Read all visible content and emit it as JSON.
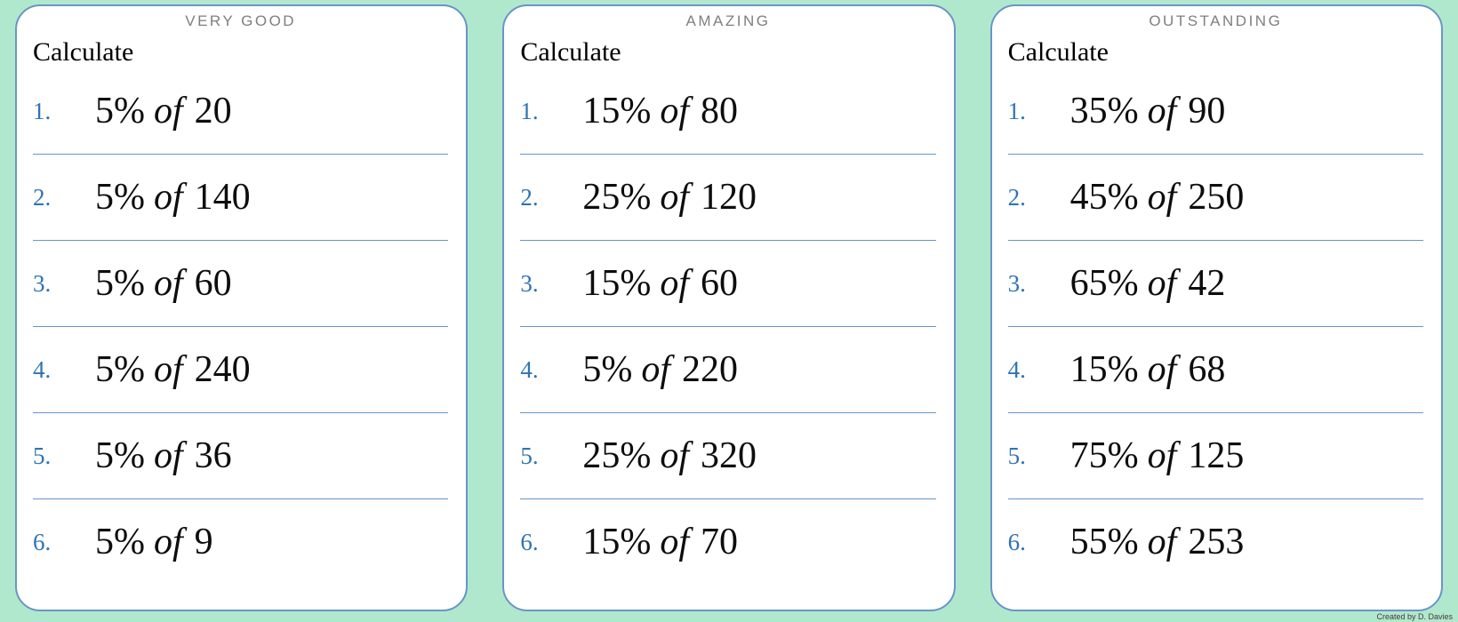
{
  "colors": {
    "background": "#b0e8cd",
    "card_border": "#6a94c8",
    "divider": "#6496cd",
    "number_blue": "#2e74b5",
    "title_gray": "#7f7f7f"
  },
  "credit": "Created by D. Davies",
  "cards": [
    {
      "title": "VERY GOOD",
      "heading": "Calculate",
      "items": [
        {
          "index": "1.",
          "percent": "5%",
          "of": "of",
          "number": "20"
        },
        {
          "index": "2.",
          "percent": "5%",
          "of": "of",
          "number": "140"
        },
        {
          "index": "3.",
          "percent": "5%",
          "of": "of",
          "number": "60"
        },
        {
          "index": "4.",
          "percent": "5%",
          "of": "of",
          "number": "240"
        },
        {
          "index": "5.",
          "percent": "5%",
          "of": "of",
          "number": "36"
        },
        {
          "index": "6.",
          "percent": "5%",
          "of": "of",
          "number": "9"
        }
      ]
    },
    {
      "title": "AMAZING",
      "heading": "Calculate",
      "items": [
        {
          "index": "1.",
          "percent": "15%",
          "of": "of",
          "number": "80"
        },
        {
          "index": "2.",
          "percent": "25%",
          "of": "of",
          "number": "120"
        },
        {
          "index": "3.",
          "percent": "15%",
          "of": "of",
          "number": "60"
        },
        {
          "index": "4.",
          "percent": "5%",
          "of": "of",
          "number": "220"
        },
        {
          "index": "5.",
          "percent": "25%",
          "of": "of",
          "number": "320"
        },
        {
          "index": "6.",
          "percent": "15%",
          "of": "of",
          "number": "70"
        }
      ]
    },
    {
      "title": "OUTSTANDING",
      "heading": "Calculate",
      "items": [
        {
          "index": "1.",
          "percent": "35%",
          "of": "of",
          "number": "90"
        },
        {
          "index": "2.",
          "percent": "45%",
          "of": "of",
          "number": "250"
        },
        {
          "index": "3.",
          "percent": "65%",
          "of": "of",
          "number": "42"
        },
        {
          "index": "4.",
          "percent": "15%",
          "of": "of",
          "number": "68"
        },
        {
          "index": "5.",
          "percent": "75%",
          "of": "of",
          "number": "125"
        },
        {
          "index": "6.",
          "percent": "55%",
          "of": "of",
          "number": "253"
        }
      ]
    }
  ]
}
